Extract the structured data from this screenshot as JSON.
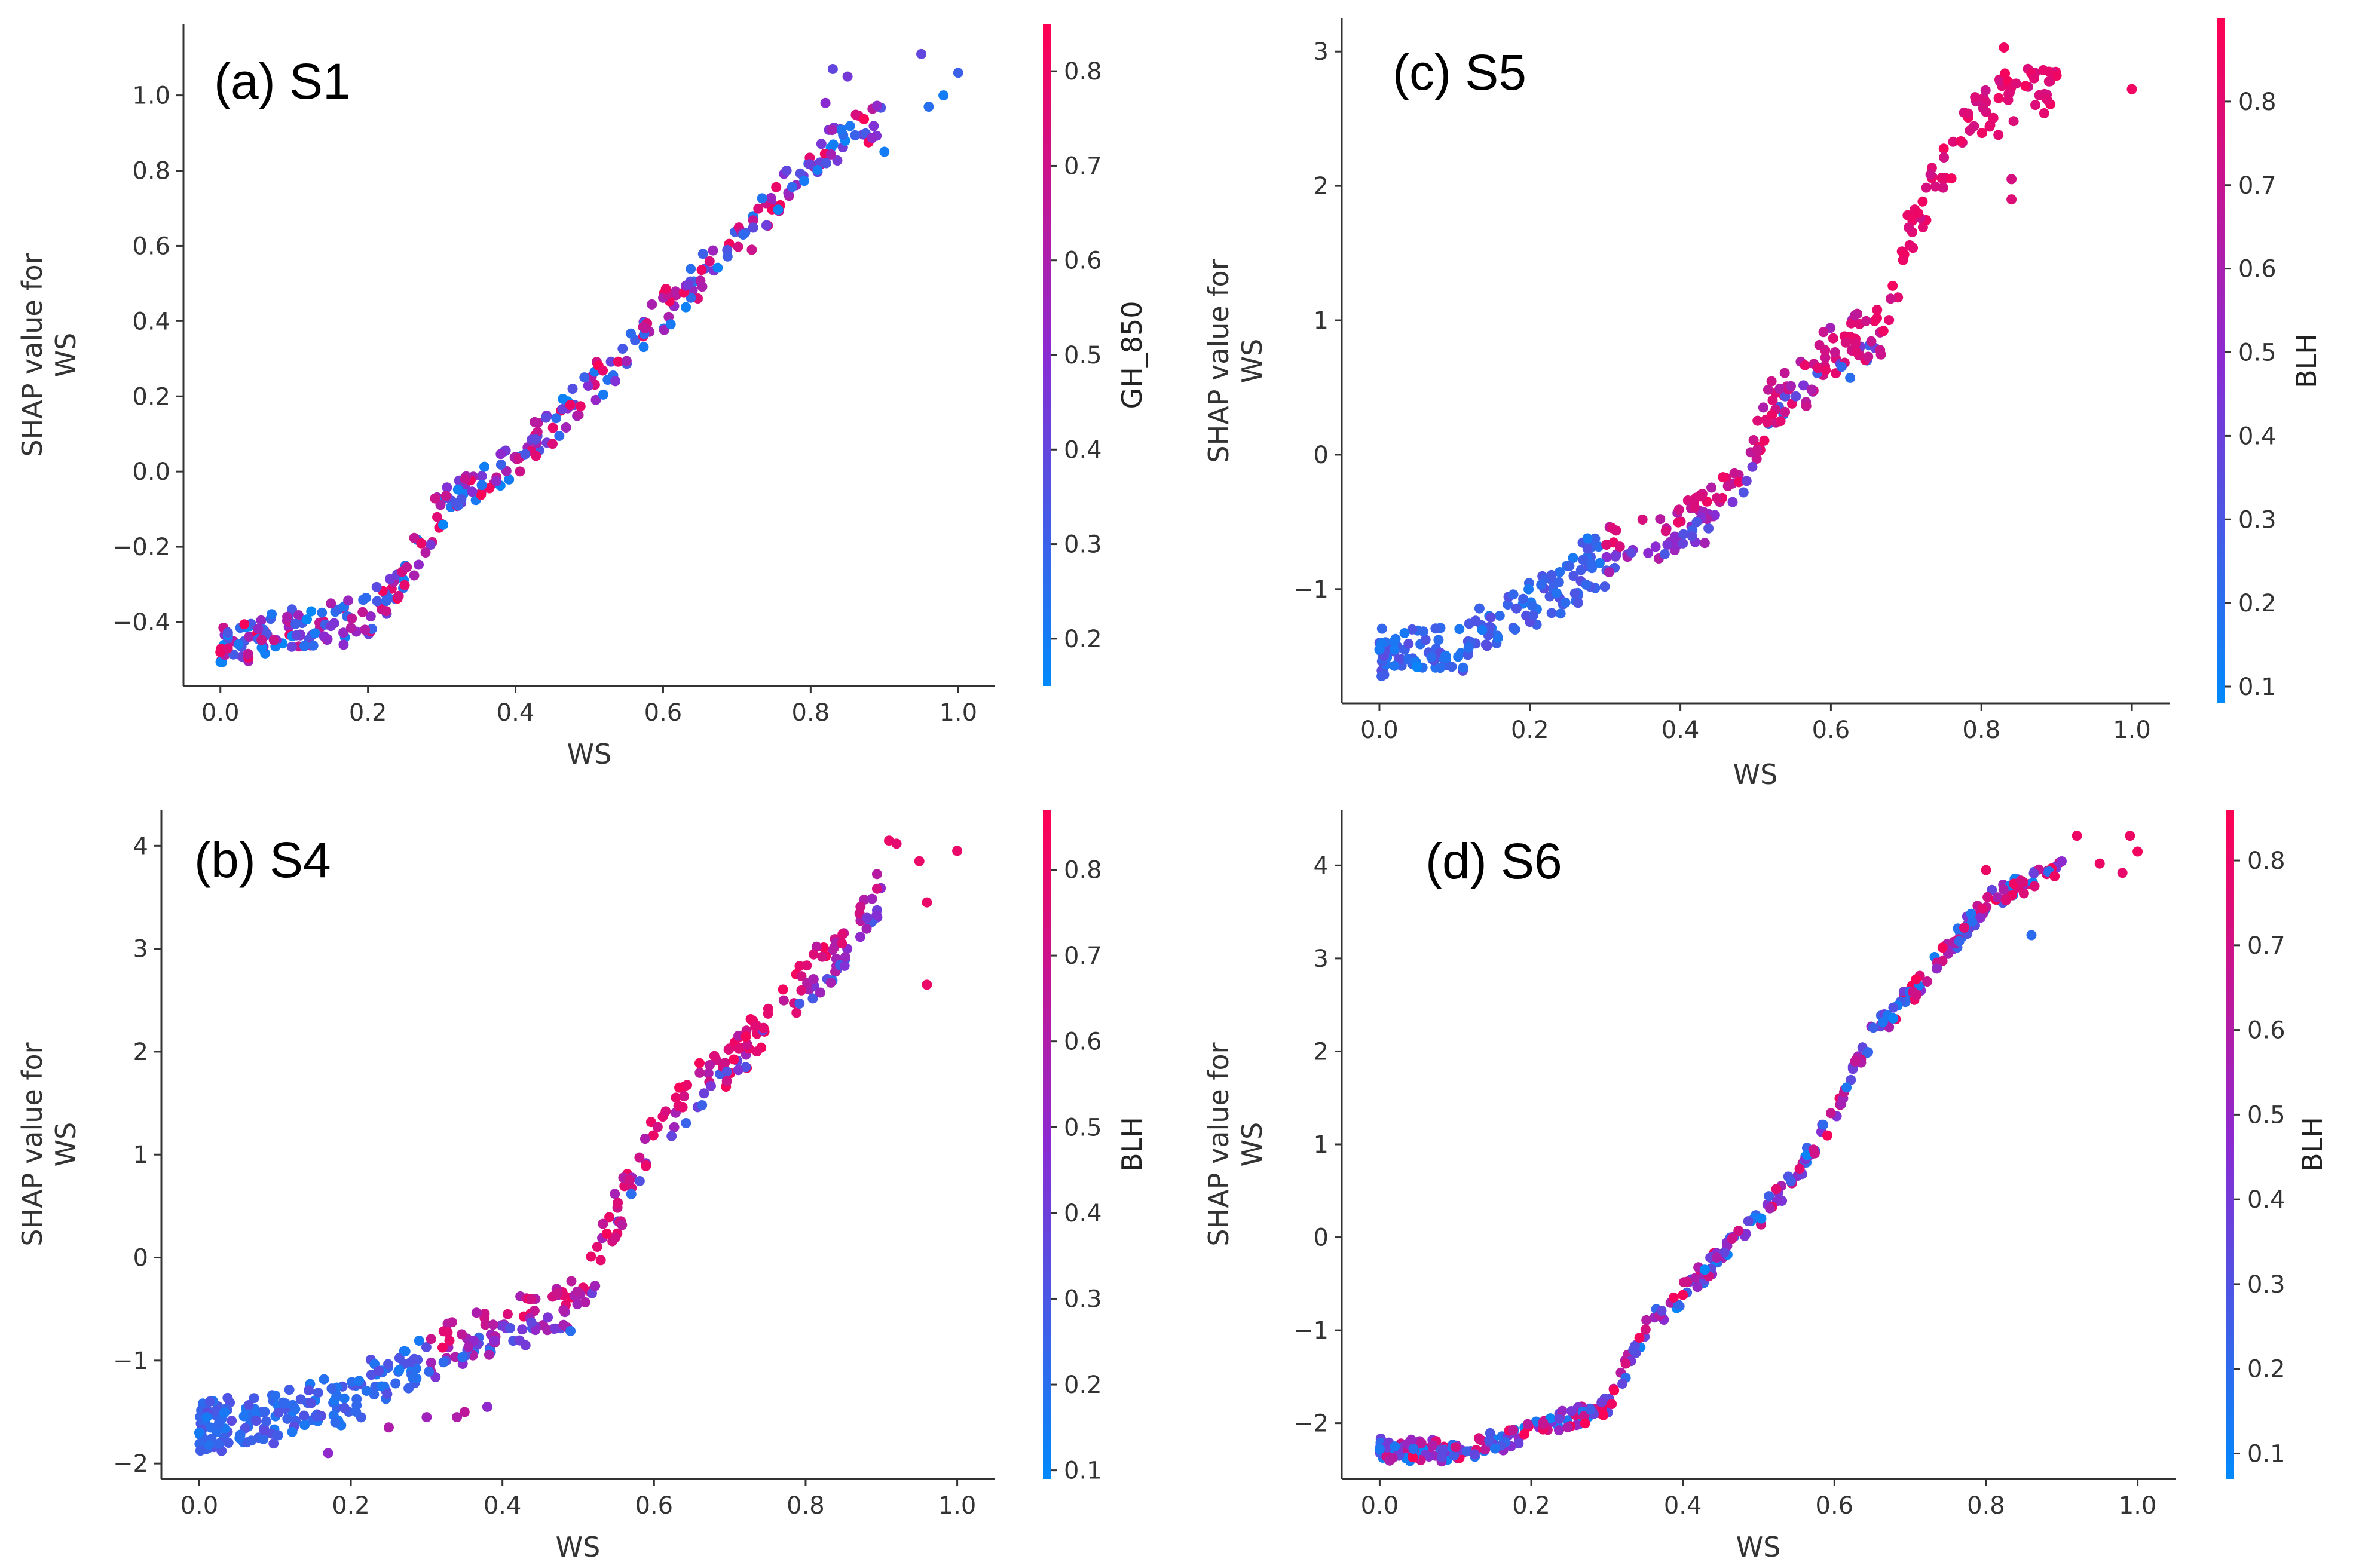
{
  "chart_data": [
    {
      "id": "a",
      "type": "scatter",
      "title": "(a) S1",
      "xlabel": "WS",
      "ylabel": [
        "SHAP value for",
        "WS"
      ],
      "xlim": [
        -0.05,
        1.05
      ],
      "ylim": [
        -0.57,
        1.19
      ],
      "xticks": [
        0.0,
        0.2,
        0.4,
        0.6,
        0.8,
        1.0
      ],
      "xtick_labels": [
        "0.0",
        "0.2",
        "0.4",
        "0.6",
        "0.8",
        "1.0"
      ],
      "yticks": [
        -0.4,
        -0.2,
        0.0,
        0.2,
        0.4,
        0.6,
        0.8,
        1.0
      ],
      "ytick_labels": [
        "−0.4",
        "−0.2",
        "0.0",
        "0.2",
        "0.4",
        "0.6",
        "0.8",
        "1.0"
      ],
      "colorbar": {
        "label": "GH_850",
        "range": [
          0.15,
          0.85
        ],
        "ticks": [
          0.2,
          0.3,
          0.4,
          0.5,
          0.6,
          0.7,
          0.8
        ],
        "tick_labels": [
          "0.2",
          "0.3",
          "0.4",
          "0.5",
          "0.6",
          "0.7",
          "0.8"
        ]
      },
      "curve": [
        [
          0.0,
          -0.47
        ],
        [
          0.1,
          -0.42
        ],
        [
          0.2,
          -0.39
        ],
        [
          0.25,
          -0.27
        ],
        [
          0.3,
          -0.1
        ],
        [
          0.4,
          0.03
        ],
        [
          0.5,
          0.22
        ],
        [
          0.6,
          0.43
        ],
        [
          0.7,
          0.6
        ],
        [
          0.8,
          0.83
        ],
        [
          0.9,
          0.95
        ],
        [
          1.0,
          1.05
        ]
      ],
      "seed": 11,
      "n_points": 360,
      "spread": 0.04,
      "color_mode": "mixed",
      "extra_points": [
        [
          0.0,
          -0.48,
          0.8
        ],
        [
          0.01,
          -0.47,
          0.75
        ],
        [
          0.83,
          1.07,
          0.4
        ],
        [
          0.85,
          1.05,
          0.45
        ],
        [
          0.95,
          1.11,
          0.4
        ],
        [
          0.98,
          1.0,
          0.2
        ],
        [
          1.0,
          1.06,
          0.3
        ],
        [
          0.96,
          0.97,
          0.25
        ],
        [
          0.9,
          0.85,
          0.2
        ],
        [
          0.82,
          0.98,
          0.5
        ]
      ]
    },
    {
      "id": "b",
      "type": "scatter",
      "title": "(b) S4",
      "xlabel": "WS",
      "ylabel": [
        "SHAP value for",
        "WS"
      ],
      "xlim": [
        -0.05,
        1.05
      ],
      "ylim": [
        -2.15,
        4.35
      ],
      "xticks": [
        0.0,
        0.2,
        0.4,
        0.6,
        0.8,
        1.0
      ],
      "xtick_labels": [
        "0.0",
        "0.2",
        "0.4",
        "0.6",
        "0.8",
        "1.0"
      ],
      "yticks": [
        -2,
        -1,
        0,
        1,
        2,
        3,
        4
      ],
      "ytick_labels": [
        "−2",
        "−1",
        "0",
        "1",
        "2",
        "3",
        "4"
      ],
      "colorbar": {
        "label": "BLH",
        "range": [
          0.09,
          0.87
        ],
        "ticks": [
          0.1,
          0.2,
          0.3,
          0.4,
          0.5,
          0.6,
          0.7,
          0.8
        ],
        "tick_labels": [
          "0.1",
          "0.2",
          "0.3",
          "0.4",
          "0.5",
          "0.6",
          "0.7",
          "0.8"
        ]
      },
      "curve": [
        [
          0.0,
          -1.65
        ],
        [
          0.1,
          -1.55
        ],
        [
          0.2,
          -1.35
        ],
        [
          0.3,
          -0.95
        ],
        [
          0.4,
          -0.65
        ],
        [
          0.5,
          -0.45
        ],
        [
          0.53,
          0.1
        ],
        [
          0.58,
          0.9
        ],
        [
          0.65,
          1.6
        ],
        [
          0.7,
          1.9
        ],
        [
          0.8,
          2.7
        ],
        [
          0.85,
          3.0
        ],
        [
          0.9,
          3.6
        ],
        [
          1.0,
          3.9
        ]
      ],
      "seed": 23,
      "n_points": 430,
      "spread": 0.17,
      "color_mode": "stratified",
      "extra_points": [
        [
          0.0,
          -1.7,
          0.15
        ],
        [
          0.01,
          -1.55,
          0.15
        ],
        [
          0.91,
          4.05,
          0.8
        ],
        [
          0.92,
          4.02,
          0.78
        ],
        [
          1.0,
          3.95,
          0.8
        ],
        [
          0.95,
          3.85,
          0.8
        ],
        [
          0.96,
          3.45,
          0.8
        ],
        [
          0.96,
          2.65,
          0.8
        ],
        [
          0.34,
          -1.55,
          0.6
        ],
        [
          0.35,
          -1.5,
          0.65
        ],
        [
          0.3,
          -1.55,
          0.55
        ],
        [
          0.17,
          -1.9,
          0.5
        ],
        [
          0.25,
          -1.65,
          0.6
        ],
        [
          0.38,
          -1.45,
          0.5
        ]
      ]
    },
    {
      "id": "c",
      "type": "scatter",
      "title": "(c) S5",
      "xlabel": "WS",
      "ylabel": [
        "SHAP value for",
        "WS"
      ],
      "xlim": [
        -0.05,
        1.05
      ],
      "ylim": [
        -1.85,
        3.25
      ],
      "xticks": [
        0.0,
        0.2,
        0.4,
        0.6,
        0.8,
        1.0
      ],
      "xtick_labels": [
        "0.0",
        "0.2",
        "0.4",
        "0.6",
        "0.8",
        "1.0"
      ],
      "yticks": [
        -1,
        0,
        1,
        2,
        3
      ],
      "ytick_labels": [
        "−1",
        "0",
        "1",
        "2",
        "3"
      ],
      "colorbar": {
        "label": "BLH",
        "range": [
          0.08,
          0.9
        ],
        "ticks": [
          0.1,
          0.2,
          0.3,
          0.4,
          0.5,
          0.6,
          0.7,
          0.8
        ],
        "tick_labels": [
          "0.1",
          "0.2",
          "0.3",
          "0.4",
          "0.5",
          "0.6",
          "0.7",
          "0.8"
        ]
      },
      "curve": [
        [
          0.0,
          -1.45
        ],
        [
          0.1,
          -1.45
        ],
        [
          0.2,
          -1.15
        ],
        [
          0.3,
          -0.75
        ],
        [
          0.4,
          -0.55
        ],
        [
          0.48,
          -0.25
        ],
        [
          0.52,
          0.35
        ],
        [
          0.6,
          0.75
        ],
        [
          0.67,
          0.9
        ],
        [
          0.7,
          1.55
        ],
        [
          0.75,
          2.2
        ],
        [
          0.8,
          2.55
        ],
        [
          0.9,
          2.8
        ],
        [
          1.0,
          2.75
        ]
      ],
      "seed": 37,
      "n_points": 400,
      "spread": 0.15,
      "color_mode": "stratified",
      "extra_points": [
        [
          0.0,
          -1.45,
          0.15
        ],
        [
          0.02,
          -1.45,
          0.15
        ],
        [
          0.05,
          -1.58,
          0.1
        ],
        [
          1.0,
          2.72,
          0.85
        ],
        [
          0.9,
          2.82,
          0.85
        ],
        [
          0.89,
          2.85,
          0.82
        ],
        [
          0.83,
          3.03,
          0.85
        ],
        [
          0.87,
          2.8,
          0.8
        ],
        [
          0.84,
          2.05,
          0.75
        ],
        [
          0.84,
          1.9,
          0.78
        ]
      ]
    },
    {
      "id": "d",
      "type": "scatter",
      "title": "(d) S6",
      "xlabel": "WS",
      "ylabel": [
        "SHAP value for",
        "WS"
      ],
      "xlim": [
        -0.05,
        1.05
      ],
      "ylim": [
        -2.6,
        4.6
      ],
      "xticks": [
        0.0,
        0.2,
        0.4,
        0.6,
        0.8,
        1.0
      ],
      "xtick_labels": [
        "0.0",
        "0.2",
        "0.4",
        "0.6",
        "0.8",
        "1.0"
      ],
      "yticks": [
        -2,
        -1,
        0,
        1,
        2,
        3,
        4
      ],
      "ytick_labels": [
        "−2",
        "−1",
        "0",
        "1",
        "2",
        "3",
        "4"
      ],
      "colorbar": {
        "label": "BLH",
        "range": [
          0.07,
          0.86
        ],
        "ticks": [
          0.1,
          0.2,
          0.3,
          0.4,
          0.5,
          0.6,
          0.7,
          0.8
        ],
        "tick_labels": [
          "0.1",
          "0.2",
          "0.3",
          "0.4",
          "0.5",
          "0.6",
          "0.7",
          "0.8"
        ]
      },
      "curve": [
        [
          0.0,
          -2.28
        ],
        [
          0.1,
          -2.3
        ],
        [
          0.2,
          -2.1
        ],
        [
          0.3,
          -1.8
        ],
        [
          0.35,
          -1.0
        ],
        [
          0.4,
          -0.6
        ],
        [
          0.5,
          0.2
        ],
        [
          0.55,
          0.7
        ],
        [
          0.6,
          1.3
        ],
        [
          0.65,
          2.2
        ],
        [
          0.7,
          2.6
        ],
        [
          0.75,
          3.1
        ],
        [
          0.8,
          3.6
        ],
        [
          0.9,
          4.0
        ],
        [
          1.0,
          4.2
        ]
      ],
      "seed": 53,
      "n_points": 420,
      "spread": 0.08,
      "color_mode": "mixed",
      "extra_points": [
        [
          0.0,
          -2.28,
          0.15
        ],
        [
          0.02,
          -2.25,
          0.15
        ],
        [
          0.92,
          4.32,
          0.8
        ],
        [
          0.99,
          4.32,
          0.8
        ],
        [
          1.0,
          4.15,
          0.82
        ],
        [
          0.98,
          3.92,
          0.78
        ],
        [
          0.95,
          4.02,
          0.8
        ],
        [
          0.86,
          3.25,
          0.2
        ],
        [
          0.85,
          3.7,
          0.75
        ],
        [
          0.8,
          3.95,
          0.8
        ]
      ]
    }
  ]
}
